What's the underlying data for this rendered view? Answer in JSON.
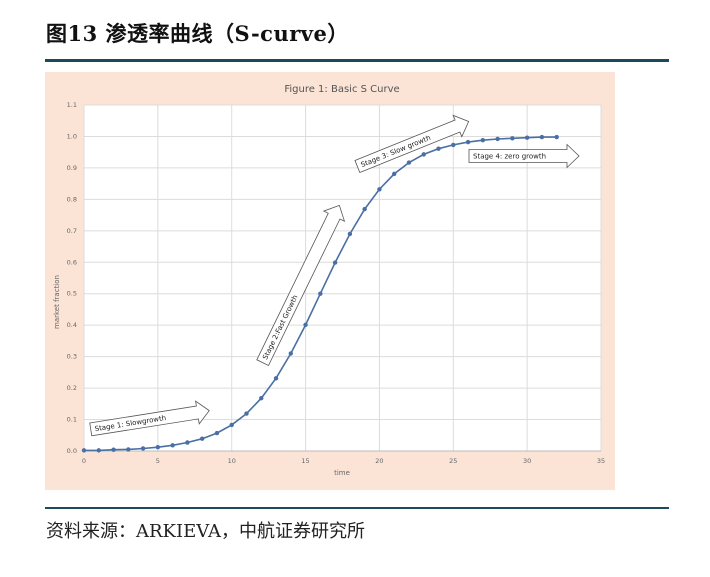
{
  "header": {
    "title": "图13  渗透率曲线（S-curve）"
  },
  "footer": {
    "source": "资料来源：ARKIEVA，中航证券研究所"
  },
  "colors": {
    "background": "#fbe3d6",
    "plot_bg": "#ffffff",
    "series": "#4a6fa5",
    "rule": "#1d4a5a"
  },
  "chart_data": {
    "type": "line",
    "title": "Figure 1: Basic S Curve",
    "xlabel": "time",
    "ylabel": "market fraction",
    "xlim": [
      0,
      35
    ],
    "ylim": [
      0,
      1.1
    ],
    "xticks": [
      "0",
      "5",
      "10",
      "15",
      "20",
      "25",
      "30",
      "35"
    ],
    "yticks": [
      "0.0",
      "0.1",
      "0.2",
      "0.3",
      "0.4",
      "0.5",
      "0.6",
      "0.7",
      "0.8",
      "0.9",
      "1.0",
      "1.1"
    ],
    "grid": true,
    "markers": true,
    "x": [
      0,
      1,
      2,
      3,
      4,
      5,
      6,
      7,
      8,
      9,
      10,
      11,
      12,
      13,
      14,
      15,
      16,
      17,
      18,
      19,
      20,
      21,
      22,
      23,
      24,
      25,
      26,
      27,
      28,
      29,
      30,
      31,
      32
    ],
    "y": [
      0.002,
      0.002,
      0.004,
      0.005,
      0.008,
      0.012,
      0.018,
      0.027,
      0.039,
      0.057,
      0.083,
      0.119,
      0.168,
      0.231,
      0.31,
      0.401,
      0.5,
      0.599,
      0.69,
      0.769,
      0.832,
      0.881,
      0.917,
      0.943,
      0.961,
      0.973,
      0.982,
      0.988,
      0.992,
      0.994,
      0.996,
      0.998,
      0.998
    ],
    "annotations": [
      {
        "text": "Stage 1: Slowgrowth"
      },
      {
        "text": "Stage 2:Fast Growth"
      },
      {
        "text": "Stage 3: Slow growth"
      },
      {
        "text": "Stage 4: zero growth"
      }
    ]
  }
}
